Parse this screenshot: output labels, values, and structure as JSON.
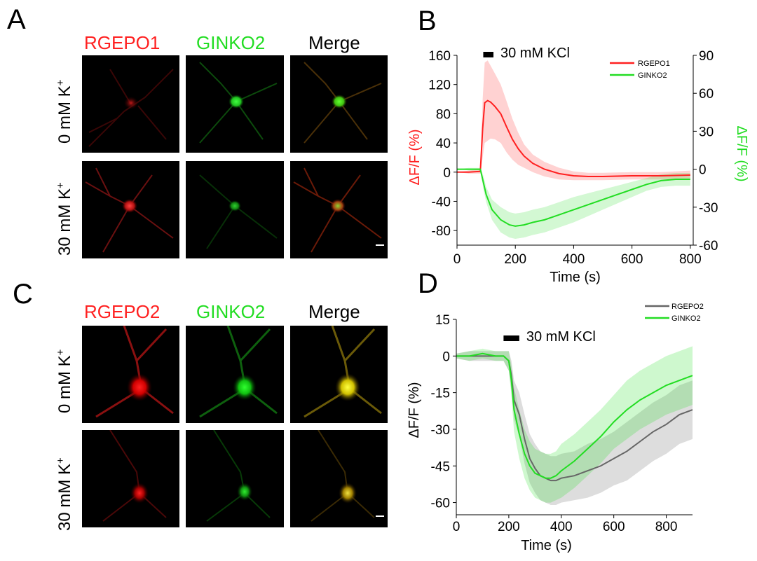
{
  "panel_a": {
    "letter": "A",
    "columns": [
      "RGEPO1",
      "GINKO2",
      "Merge"
    ],
    "rows": [
      {
        "label": "0 mM K",
        "sup": "+"
      },
      {
        "label": "30 mM K",
        "sup": "+"
      }
    ]
  },
  "panel_c": {
    "letter": "C",
    "columns": [
      "RGEPO2",
      "GINKO2",
      "Merge"
    ],
    "rows": [
      {
        "label": "0 mM K",
        "sup": "+"
      },
      {
        "label": "30 mM K",
        "sup": "+"
      }
    ]
  },
  "colors": {
    "red": "#ff2020",
    "green": "#22dd22",
    "gray": "#666666",
    "yellow": "#e8d800"
  },
  "chart_data": [
    {
      "panel": "B",
      "type": "line",
      "annotation": "30 mM KCl",
      "stimulus_bar": [
        90,
        125
      ],
      "xlabel": "Time (s)",
      "ylabel_left": "ΔF/F (%)",
      "ylabel_right": "ΔF/F (%)",
      "xlim": [
        0,
        810
      ],
      "ylim_left": [
        -100,
        160
      ],
      "ylim_right": [
        -60,
        90
      ],
      "xticks": [
        0,
        200,
        400,
        600,
        800
      ],
      "yticks_left": [
        -80,
        -40,
        0,
        40,
        80,
        120,
        160
      ],
      "yticks_right": [
        -60,
        -30,
        0,
        30,
        60,
        90
      ],
      "series": [
        {
          "name": "RGEPO1",
          "axis": "left",
          "color": "#ff2020",
          "x": [
            0,
            40,
            80,
            88,
            95,
            105,
            115,
            130,
            150,
            170,
            190,
            210,
            230,
            260,
            300,
            350,
            400,
            450,
            500,
            600,
            700,
            800
          ],
          "values": [
            0,
            0,
            1,
            60,
            95,
            98,
            96,
            90,
            80,
            62,
            45,
            32,
            22,
            12,
            4,
            -2,
            -5,
            -6,
            -6,
            -5,
            -5,
            -4
          ],
          "band": [
            0,
            2,
            3,
            40,
            55,
            55,
            50,
            45,
            40,
            35,
            28,
            22,
            16,
            12,
            10,
            8,
            6,
            5,
            5,
            5,
            5,
            6
          ]
        },
        {
          "name": "GINKO2",
          "axis": "right",
          "color": "#22dd22",
          "x": [
            0,
            40,
            80,
            90,
            100,
            120,
            150,
            180,
            200,
            230,
            260,
            300,
            350,
            400,
            450,
            500,
            550,
            600,
            650,
            700,
            750,
            800
          ],
          "values": [
            0,
            0,
            0,
            -10,
            -20,
            -32,
            -40,
            -44,
            -45,
            -44,
            -42,
            -40,
            -36,
            -32,
            -28,
            -24,
            -20,
            -16,
            -12,
            -9,
            -8,
            -8
          ],
          "band": [
            0,
            1,
            1,
            5,
            6,
            8,
            10,
            10,
            10,
            10,
            10,
            10,
            10,
            10,
            9,
            8,
            7,
            6,
            5,
            5,
            5,
            5
          ]
        }
      ]
    },
    {
      "panel": "D",
      "type": "line",
      "annotation": "30 mM KCl",
      "stimulus_bar": [
        180,
        240
      ],
      "xlabel": "Time (s)",
      "ylabel": "ΔF/F (%)",
      "xlim": [
        0,
        900
      ],
      "ylim": [
        -65,
        15
      ],
      "xticks": [
        0,
        200,
        400,
        600,
        800
      ],
      "yticks": [
        -60,
        -45,
        -30,
        -15,
        0,
        15
      ],
      "series": [
        {
          "name": "RGEPO2",
          "color": "#666666",
          "x": [
            0,
            50,
            100,
            150,
            180,
            200,
            210,
            220,
            240,
            260,
            280,
            300,
            320,
            340,
            360,
            380,
            400,
            450,
            500,
            550,
            600,
            650,
            700,
            750,
            800,
            850,
            900
          ],
          "values": [
            0,
            0,
            0,
            0,
            0,
            -2,
            -8,
            -18,
            -24,
            -34,
            -42,
            -46,
            -49,
            -50,
            -51,
            -51,
            -50,
            -49,
            -47,
            -45,
            -42,
            -39,
            -35,
            -31,
            -28,
            -24,
            -22
          ],
          "band": [
            1,
            2,
            2,
            2,
            2,
            4,
            6,
            8,
            9,
            10,
            10,
            10,
            10,
            10,
            10,
            10,
            10,
            10,
            11,
            11,
            11,
            12,
            12,
            12,
            12,
            12,
            12
          ]
        },
        {
          "name": "GINKO2",
          "color": "#22dd22",
          "x": [
            0,
            50,
            100,
            150,
            180,
            200,
            210,
            220,
            240,
            260,
            280,
            300,
            320,
            340,
            360,
            380,
            400,
            450,
            500,
            550,
            600,
            650,
            700,
            750,
            800,
            850,
            900
          ],
          "values": [
            0,
            0,
            1,
            0,
            0,
            -2,
            -10,
            -22,
            -32,
            -40,
            -45,
            -48,
            -49,
            -50,
            -50,
            -49,
            -47,
            -43,
            -38,
            -33,
            -27,
            -22,
            -18,
            -15,
            -12,
            -10,
            -8
          ],
          "band": [
            1,
            2,
            2,
            2,
            2,
            4,
            6,
            9,
            10,
            10,
            10,
            10,
            10,
            10,
            10,
            10,
            11,
            11,
            11,
            11,
            11,
            12,
            12,
            12,
            12,
            12,
            12
          ]
        }
      ]
    }
  ]
}
